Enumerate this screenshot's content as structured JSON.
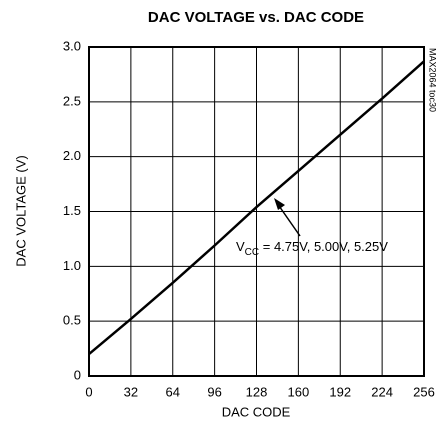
{
  "chart_data": {
    "type": "line",
    "title": "DAC VOLTAGE vs. DAC CODE",
    "x_label": "DAC CODE",
    "y_label": "DAC VOLTAGE (V)",
    "x": [
      0,
      32,
      64,
      96,
      128,
      160,
      192,
      224,
      256
    ],
    "series": [
      {
        "color": "#000000",
        "values": [
          0.2,
          0.52,
          0.85,
          1.19,
          1.54,
          1.87,
          2.2,
          2.53,
          2.87
        ]
      }
    ],
    "xlim": [
      0,
      256
    ],
    "xticks": [
      0,
      32,
      64,
      96,
      128,
      160,
      192,
      224,
      256
    ],
    "ylim": [
      0,
      3
    ],
    "yticks": [
      0,
      0.5,
      {
        "value": 1,
        "label": "1.0"
      },
      1.5,
      {
        "value": 2,
        "label": "2.0"
      },
      2.5,
      {
        "value": 3,
        "label": "3.0"
      }
    ],
    "grid": true,
    "annotation": {
      "main": "V",
      "sub": "CC",
      "rest": " = 4.75V, 5.00V, 5.25V"
    },
    "side_note": "MAX2064 toc30"
  }
}
